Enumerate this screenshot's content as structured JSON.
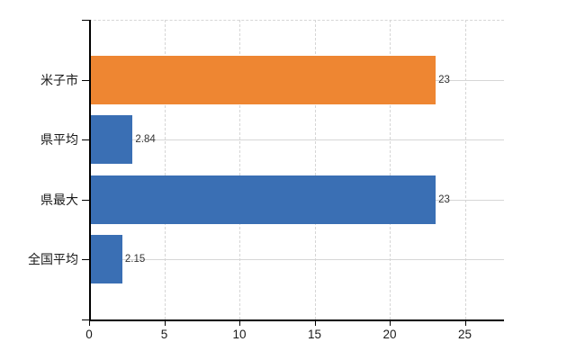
{
  "chart_data": {
    "type": "bar",
    "orientation": "horizontal",
    "title": "",
    "categories": [
      "米子市",
      "県平均",
      "県最大",
      "全国平均"
    ],
    "values": [
      23,
      2.84,
      23,
      2.15
    ],
    "data_labels": [
      "23",
      "2.84",
      "23",
      "2.15"
    ],
    "bar_colors": [
      "#EE8632",
      "#3A6FB4",
      "#3A6FB4",
      "#3A6FB4"
    ],
    "x_ticks": [
      0,
      5,
      10,
      15,
      20,
      25
    ],
    "x_tick_labels": [
      "0",
      "5",
      "10",
      "15",
      "20",
      "25"
    ],
    "xlim": [
      0,
      27.6
    ],
    "grid": true,
    "legend": false,
    "colors": {
      "grid": "#D6D6D6",
      "axis": "#000000",
      "label_text": "#1A1A1A",
      "data_label_text": "#333333",
      "background": "#FFFFFF"
    }
  }
}
